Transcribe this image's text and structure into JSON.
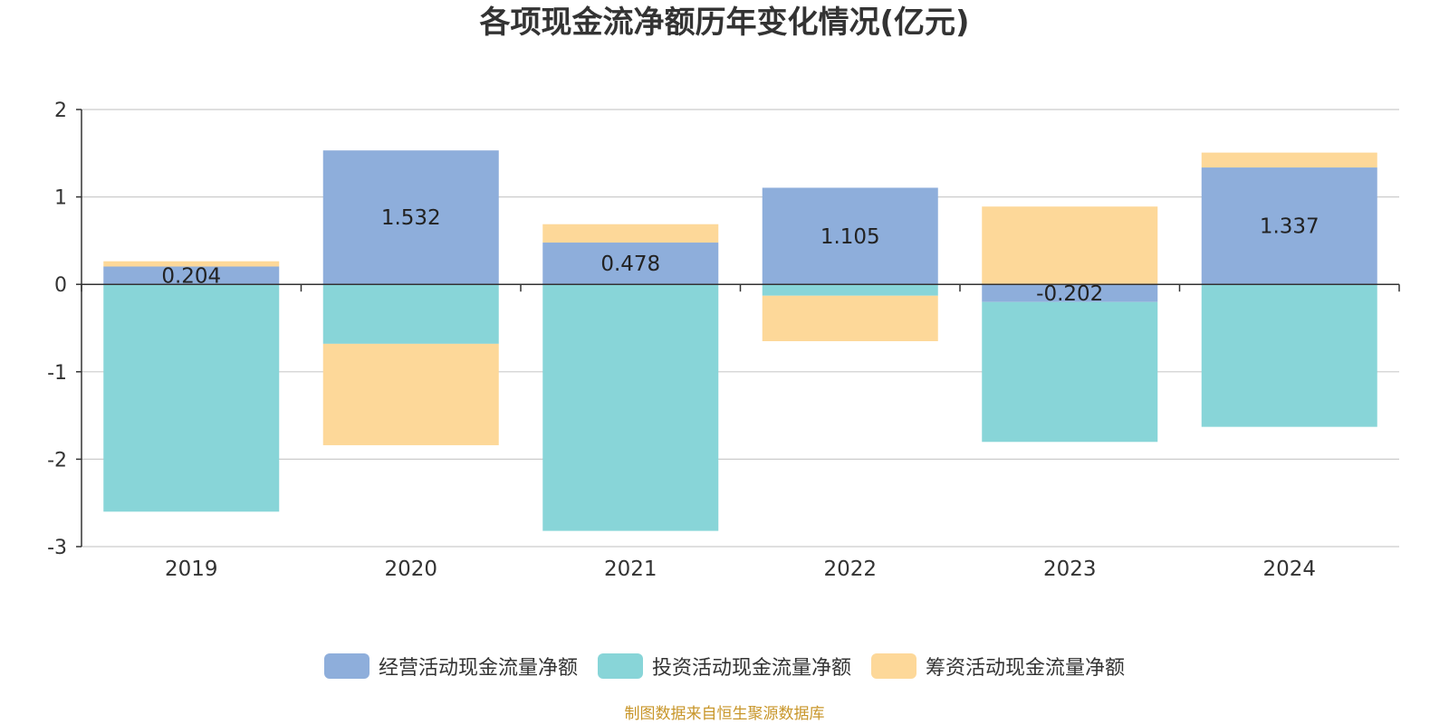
{
  "chart_data": {
    "type": "bar",
    "stacked": true,
    "title": "各项现金流净额历年变化情况(亿元)",
    "categories": [
      "2019",
      "2020",
      "2021",
      "2022",
      "2023",
      "2024"
    ],
    "ylim": [
      -3,
      2
    ],
    "yticks": [
      "2",
      "1",
      "0",
      "-1",
      "-2",
      "-3"
    ],
    "ytick_values": [
      2,
      1,
      0,
      -1,
      -2,
      -3
    ],
    "grid": true,
    "legend_position": "bottom",
    "series": [
      {
        "name": "经营活动现金流量净额",
        "color": "#8eaedb",
        "values": [
          0.204,
          1.532,
          0.478,
          1.105,
          -0.202,
          1.337
        ],
        "labels": [
          "0.204",
          "1.532",
          "0.478",
          "1.105",
          "-0.202",
          "1.337"
        ]
      },
      {
        "name": "投资活动现金流量净额",
        "color": "#88d5d8",
        "values": [
          -2.6,
          -0.68,
          -2.82,
          -0.13,
          -1.6,
          -1.63
        ]
      },
      {
        "name": "筹资活动现金流量净额",
        "color": "#fdd899",
        "values": [
          0.06,
          -1.16,
          0.21,
          -0.52,
          0.89,
          0.17
        ]
      }
    ]
  },
  "source_note": "制图数据来自恒生聚源数据库"
}
